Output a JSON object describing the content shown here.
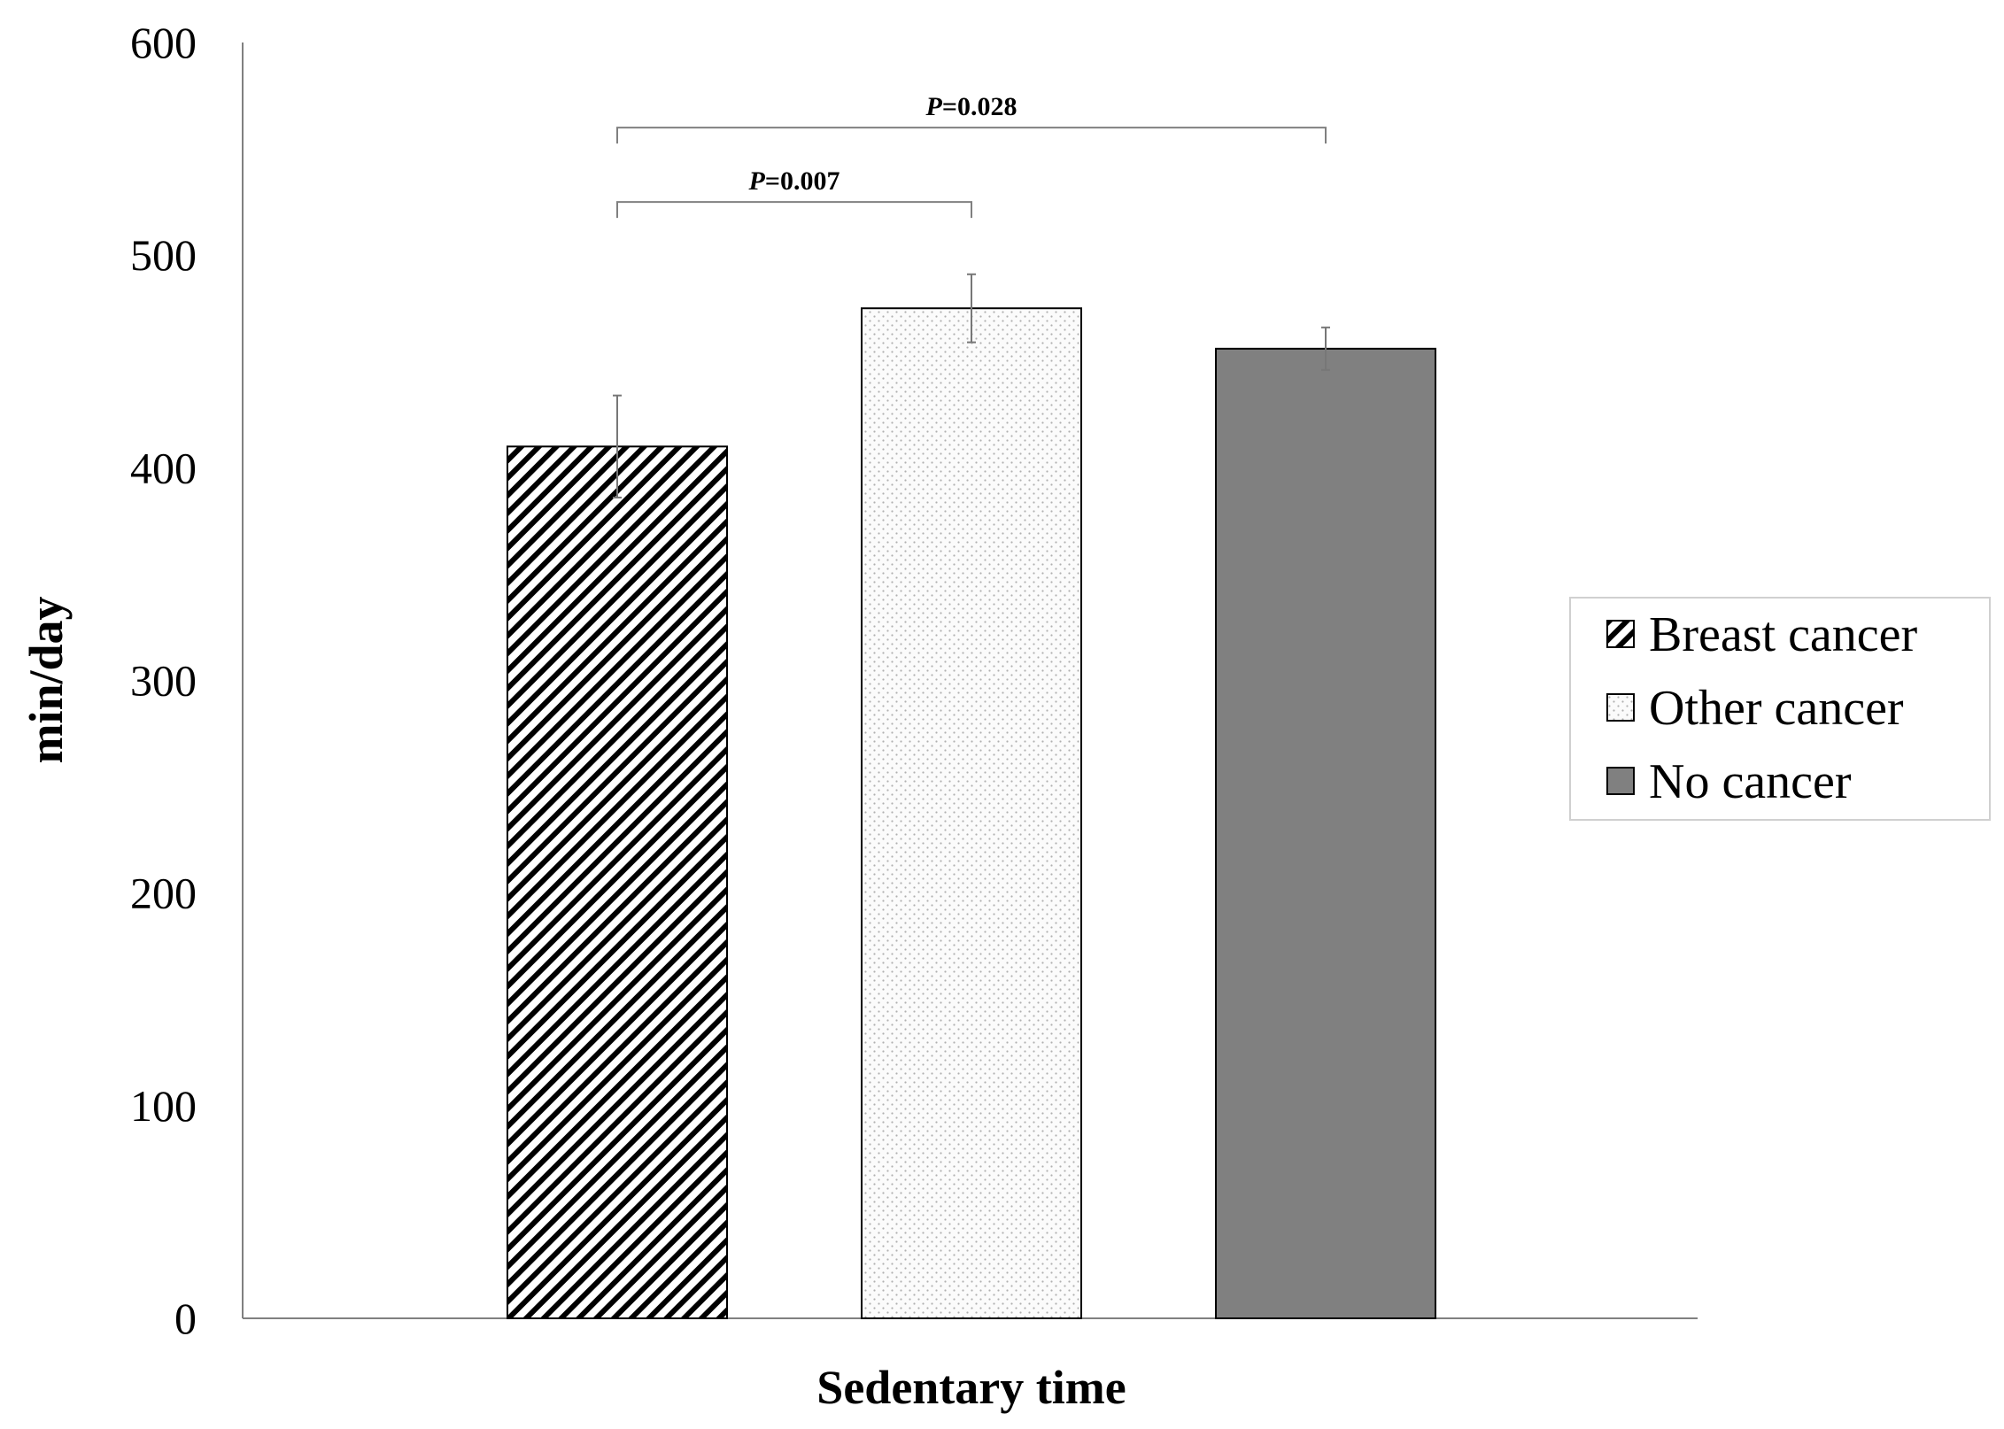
{
  "chart_data": {
    "type": "bar",
    "categories": [
      "Sedentary time"
    ],
    "xlabel": "Sedentary time",
    "ylabel": "min/day",
    "ylim": [
      0,
      600
    ],
    "yticks": [
      "0",
      "100",
      "200",
      "300",
      "400",
      "500",
      "600"
    ],
    "grid": false,
    "legend_position": "right",
    "series": [
      {
        "name": "Breast cancer",
        "values": [
          410
        ],
        "error": [
          24
        ],
        "fill": "diagonal-hatch",
        "color": "#000000"
      },
      {
        "name": "Other cancer",
        "values": [
          475
        ],
        "error": [
          16
        ],
        "fill": "dotted",
        "color": "#f2f2f2"
      },
      {
        "name": "No cancer",
        "values": [
          456
        ],
        "error": [
          10
        ],
        "fill": "solid",
        "color": "#808080"
      }
    ],
    "annotations": [
      {
        "label_italic": "P",
        "label_rest": "=0.007",
        "from": "Breast cancer",
        "to": "Other cancer",
        "y": 525
      },
      {
        "label_italic": "P",
        "label_rest": "=0.028",
        "from": "Breast cancer",
        "to": "No cancer",
        "y": 560
      }
    ]
  }
}
